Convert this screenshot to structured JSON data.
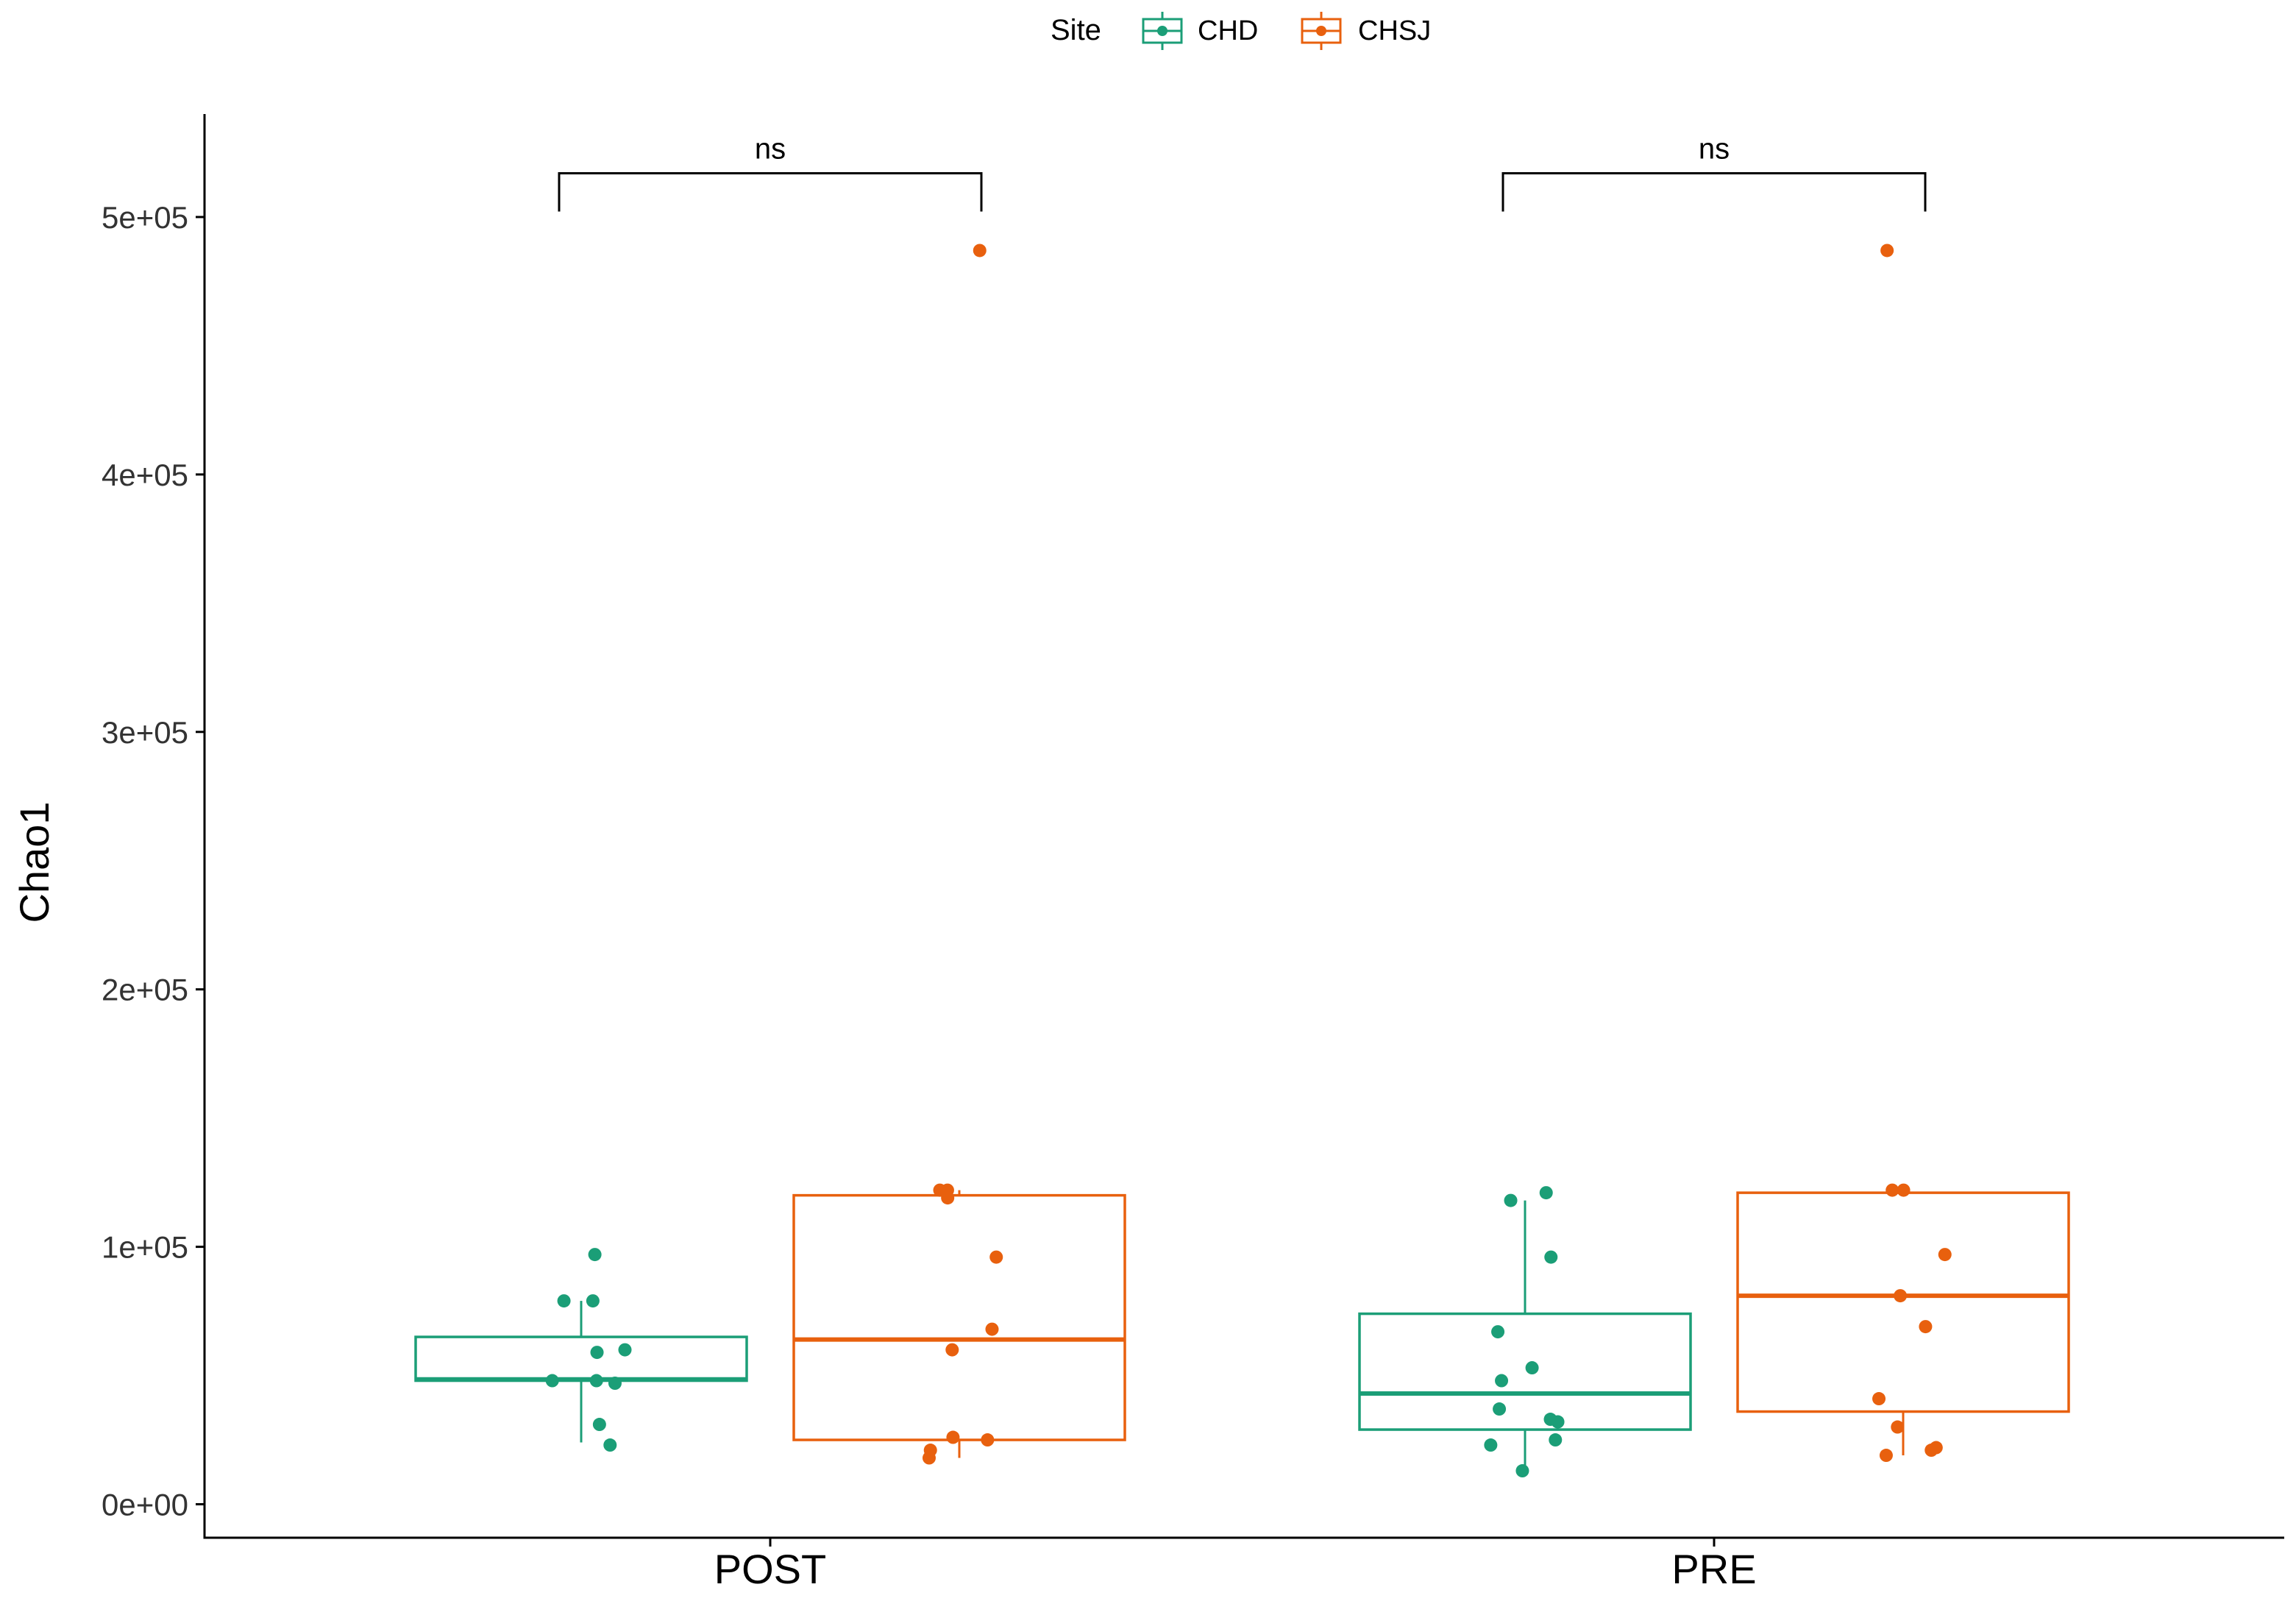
{
  "chart_data": {
    "type": "boxplot",
    "title": "",
    "xlabel": "",
    "ylabel": "Chao1",
    "ylim": [
      -13000,
      540000
    ],
    "yticks": [
      0,
      100000,
      200000,
      300000,
      400000,
      500000
    ],
    "ytick_labels": [
      "0e+00",
      "1e+05",
      "2e+05",
      "3e+05",
      "4e+05",
      "5e+05"
    ],
    "categories": [
      "POST",
      "PRE"
    ],
    "legend": {
      "title": "Site",
      "position": "top",
      "items": [
        "CHD",
        "CHSJ"
      ]
    },
    "colors": {
      "CHD": "#1b9e77",
      "CHSJ": "#e8600e"
    },
    "series": [
      {
        "name": "CHD",
        "boxes": [
          {
            "category": "POST",
            "min": 24000,
            "q1": 48000,
            "median": 48500,
            "q3": 65000,
            "max": 79000
          },
          {
            "category": "PRE",
            "min": 14000,
            "q1": 29000,
            "median": 43000,
            "q3": 74000,
            "max": 118000
          }
        ],
        "points": [
          {
            "category": "POST",
            "values": [
              97000,
              79000,
              79000,
              60000,
              59000,
              48000,
              48000,
              47000,
              31000,
              23000
            ]
          },
          {
            "category": "PRE",
            "values": [
              121000,
              118000,
              96000,
              67000,
              53000,
              48000,
              37000,
              33000,
              32000,
              25000,
              23000,
              13000
            ]
          }
        ]
      },
      {
        "name": "CHSJ",
        "boxes": [
          {
            "category": "POST",
            "min": 18000,
            "q1": 25000,
            "median": 64000,
            "q3": 120000,
            "max": 122000
          },
          {
            "category": "PRE",
            "min": 19000,
            "q1": 36000,
            "median": 81000,
            "q3": 121000,
            "max": 122000
          }
        ],
        "points": [
          {
            "category": "POST",
            "values": [
              487000,
              122000,
              122000,
              119000,
              96000,
              68000,
              60000,
              26000,
              25000,
              21000,
              18000
            ]
          },
          {
            "category": "PRE",
            "values": [
              487000,
              122000,
              122000,
              97000,
              81000,
              69000,
              41000,
              30000,
              22000,
              21000,
              19000
            ]
          }
        ]
      }
    ],
    "annotations": [
      {
        "category": "POST",
        "label": "ns",
        "y": 517000
      },
      {
        "category": "PRE",
        "label": "ns",
        "y": 517000
      }
    ]
  }
}
